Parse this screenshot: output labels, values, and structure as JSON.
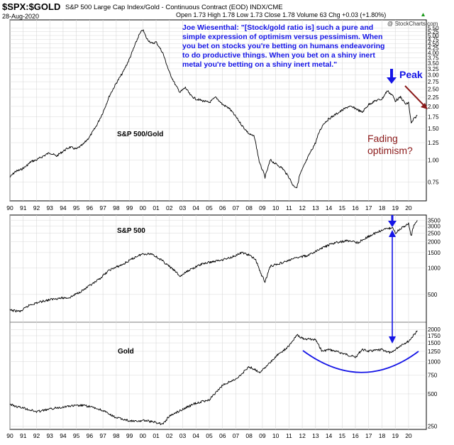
{
  "header": {
    "symbol": "$SPX:$GOLD",
    "description": "S&P 500 Large Cap Index/Gold - Continuous Contract (EOD) INDX/CME",
    "date": "28-Aug-2020",
    "ohlc": "Open 1.73  High 1.78  Low 1.73  Close 1.78  Volume 63  Chg +0.03 (+1.80%)",
    "change_arrow_icon": "triangle-up-icon",
    "watermark": "@ StockCharts.com"
  },
  "quote": "Joe Wiesenthal: \"[Stock/gold ratio is] such a pure and simple expression of optimism versus pessimism. When you bet on stocks you're betting on humans endeavoring to do productive things. When you bet on a shiny inert metal you're betting on a shiny inert metal.\"",
  "annotations": {
    "peak": "Peak",
    "fading": [
      "Fading",
      "optimism?"
    ]
  },
  "colors": {
    "price_line": "#000000",
    "annotation_blue": "#1515e6",
    "annotation_dark_red": "#8b1a1a",
    "grid": "#d8d8d8"
  },
  "chart_data": [
    {
      "type": "line",
      "label": "S&P 500/Gold",
      "scale": "log",
      "ylim": [
        0.6,
        5.9
      ],
      "yticks": [
        "5.50",
        "5.25",
        "5.00",
        "4.75",
        "4.50",
        "4.25",
        "4.00",
        "3.75",
        "3.50",
        "3.25",
        "3.00",
        "2.75",
        "2.50",
        "2.25",
        "2.00",
        "1.75",
        "1.50",
        "1.25",
        "1.00",
        "0.75"
      ],
      "x": [
        1990.0,
        1990.4,
        1990.8,
        1991.2,
        1991.6,
        1992.0,
        1992.5,
        1993.0,
        1993.5,
        1994.0,
        1994.5,
        1995.0,
        1995.5,
        1996.0,
        1996.5,
        1997.0,
        1997.5,
        1998.0,
        1998.5,
        1999.0,
        1999.4,
        1999.7,
        2000.0,
        2000.3,
        2000.7,
        2001.0,
        2001.5,
        2002.0,
        2002.5,
        2002.8,
        2003.2,
        2003.6,
        2004.0,
        2004.5,
        2005.0,
        2005.5,
        2006.0,
        2006.5,
        2007.0,
        2007.5,
        2008.0,
        2008.4,
        2008.8,
        2009.0,
        2009.2,
        2009.6,
        2010.0,
        2010.5,
        2011.0,
        2011.3,
        2011.6,
        2011.8,
        2012.2,
        2012.6,
        2013.0,
        2013.3,
        2013.6,
        2014.0,
        2014.5,
        2015.0,
        2015.5,
        2016.0,
        2016.5,
        2017.0,
        2017.5,
        2018.0,
        2018.4,
        2018.8,
        2019.0,
        2019.4,
        2019.8,
        2020.0,
        2020.2,
        2020.4,
        2020.66
      ],
      "y": [
        0.8,
        0.86,
        0.88,
        0.92,
        0.98,
        1.0,
        1.05,
        1.1,
        1.05,
        1.12,
        1.18,
        1.15,
        1.22,
        1.35,
        1.55,
        1.85,
        2.3,
        2.7,
        3.1,
        3.7,
        4.4,
        5.0,
        5.4,
        4.8,
        4.5,
        4.6,
        4.0,
        3.1,
        2.6,
        2.4,
        2.55,
        2.3,
        2.2,
        2.15,
        2.1,
        2.25,
        2.05,
        1.95,
        1.75,
        1.55,
        1.4,
        1.35,
        0.95,
        0.88,
        0.8,
        1.0,
        0.95,
        0.9,
        0.8,
        0.72,
        0.7,
        0.82,
        0.95,
        1.1,
        1.25,
        1.45,
        1.6,
        1.7,
        1.8,
        1.9,
        2.0,
        1.95,
        1.85,
        2.05,
        2.15,
        2.2,
        2.45,
        2.3,
        2.15,
        2.25,
        2.05,
        2.1,
        1.6,
        1.7,
        1.78
      ]
    },
    {
      "type": "line",
      "label": "S&P 500",
      "scale": "log",
      "ylim": [
        250,
        3800
      ],
      "yticks": [
        "3500",
        "3000",
        "2500",
        "2000",
        "1500",
        "1000",
        "500"
      ],
      "x": [
        1990.0,
        1990.8,
        1991.5,
        1992.5,
        1993.5,
        1994.5,
        1995.5,
        1996.5,
        1997.5,
        1998.5,
        1999.5,
        2000.0,
        2000.7,
        2001.5,
        2002.5,
        2002.8,
        2003.5,
        2004.5,
        2005.5,
        2006.5,
        2007.5,
        2008.0,
        2008.5,
        2008.9,
        2009.2,
        2009.6,
        2010.5,
        2011.5,
        2012.5,
        2013.5,
        2014.5,
        2015.5,
        2016.2,
        2017.0,
        2018.0,
        2018.8,
        2019.0,
        2019.5,
        2020.0,
        2020.2,
        2020.4,
        2020.66
      ],
      "y": [
        330,
        320,
        380,
        420,
        450,
        460,
        560,
        700,
        950,
        1100,
        1350,
        1450,
        1450,
        1200,
        900,
        800,
        950,
        1120,
        1200,
        1300,
        1500,
        1400,
        1250,
        850,
        700,
        1050,
        1150,
        1300,
        1400,
        1700,
        1950,
        2050,
        1950,
        2300,
        2700,
        2900,
        2500,
        2900,
        3200,
        2300,
        3100,
        3500
      ]
    },
    {
      "type": "line",
      "label": "Gold",
      "scale": "log",
      "ylim": [
        240,
        2200
      ],
      "yticks": [
        "2000",
        "1750",
        "1500",
        "1250",
        "1000",
        "750",
        "500",
        "250"
      ],
      "x": [
        1990.0,
        1990.5,
        1991.0,
        1992.0,
        1993.0,
        1993.5,
        1994.5,
        1995.5,
        1996.0,
        1997.0,
        1997.5,
        1998.0,
        1999.0,
        1999.7,
        2000.0,
        2001.0,
        2001.5,
        2002.0,
        2003.0,
        2004.0,
        2005.0,
        2006.0,
        2006.5,
        2007.0,
        2008.0,
        2008.8,
        2009.5,
        2010.0,
        2011.0,
        2011.6,
        2012.0,
        2013.0,
        2013.5,
        2014.0,
        2015.0,
        2016.0,
        2016.5,
        2017.0,
        2018.0,
        2018.7,
        2019.0,
        2019.5,
        2020.0,
        2020.66
      ],
      "y": [
        400,
        380,
        370,
        340,
        360,
        370,
        385,
        390,
        380,
        350,
        320,
        300,
        280,
        275,
        285,
        270,
        260,
        310,
        360,
        410,
        440,
        600,
        650,
        680,
        900,
        800,
        950,
        1120,
        1400,
        1800,
        1650,
        1600,
        1250,
        1300,
        1200,
        1100,
        1300,
        1250,
        1300,
        1200,
        1300,
        1450,
        1550,
        1950
      ]
    }
  ],
  "x_axis": {
    "labels": [
      "90",
      "91",
      "92",
      "93",
      "94",
      "95",
      "96",
      "97",
      "98",
      "99",
      "00",
      "01",
      "02",
      "03",
      "04",
      "05",
      "06",
      "07",
      "08",
      "09",
      "10",
      "11",
      "12",
      "13",
      "14",
      "15",
      "16",
      "17",
      "18",
      "19",
      "20"
    ]
  }
}
